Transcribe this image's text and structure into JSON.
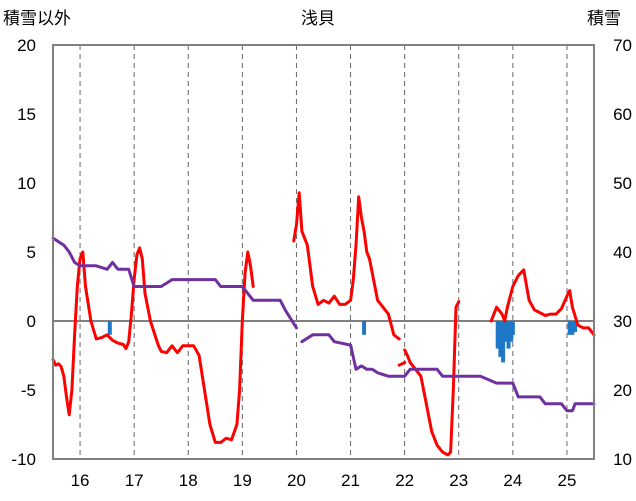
{
  "chart_data": {
    "type": "line",
    "title": "浅貝",
    "left_axis_label": "積雪以外",
    "right_axis_label": "積雪",
    "x_ticks": [
      "16",
      "17",
      "18",
      "19",
      "20",
      "21",
      "22",
      "23",
      "24",
      "25"
    ],
    "x_range": [
      15.5,
      25.5
    ],
    "ylim_left": [
      -10,
      20
    ],
    "ylim_right": [
      10,
      70
    ],
    "yticks_left": [
      "20",
      "15",
      "10",
      "5",
      "0",
      "-5",
      "-10"
    ],
    "yticks_right": [
      "70",
      "60",
      "50",
      "40",
      "30",
      "20",
      "10"
    ],
    "grid": "vertical dashed",
    "colors": {
      "temperature": "#ff0000",
      "snow_depth": "#7030a0",
      "precipitation": "#1f77c8"
    },
    "series": [
      {
        "key": "temperature",
        "axis": "left",
        "segments": [
          [
            [
              15.5,
              -2.8
            ],
            [
              15.55,
              -3.2
            ],
            [
              15.6,
              -3.1
            ],
            [
              15.65,
              -3.3
            ],
            [
              15.7,
              -4.0
            ],
            [
              15.75,
              -5.5
            ],
            [
              15.8,
              -6.8
            ],
            [
              15.85,
              -5.0
            ],
            [
              15.9,
              -1.0
            ],
            [
              15.95,
              2.5
            ],
            [
              16.0,
              4.5
            ],
            [
              16.05,
              5.0
            ],
            [
              16.1,
              2.5
            ],
            [
              16.2,
              0.0
            ],
            [
              16.3,
              -1.3
            ],
            [
              16.4,
              -1.2
            ],
            [
              16.5,
              -1.0
            ],
            [
              16.6,
              -1.4
            ],
            [
              16.7,
              -1.6
            ],
            [
              16.8,
              -1.7
            ],
            [
              16.85,
              -2.0
            ],
            [
              16.9,
              -1.5
            ],
            [
              16.95,
              0.5
            ],
            [
              17.0,
              3.0
            ],
            [
              17.05,
              4.8
            ],
            [
              17.1,
              5.3
            ],
            [
              17.15,
              4.5
            ],
            [
              17.2,
              2.0
            ],
            [
              17.3,
              0.0
            ],
            [
              17.4,
              -1.2
            ],
            [
              17.45,
              -1.8
            ],
            [
              17.5,
              -2.2
            ],
            [
              17.6,
              -2.3
            ],
            [
              17.7,
              -1.8
            ],
            [
              17.8,
              -2.3
            ],
            [
              17.9,
              -1.8
            ],
            [
              18.0,
              -1.8
            ],
            [
              18.1,
              -1.8
            ],
            [
              18.2,
              -2.5
            ],
            [
              18.3,
              -5.0
            ],
            [
              18.4,
              -7.5
            ],
            [
              18.5,
              -8.8
            ],
            [
              18.6,
              -8.8
            ],
            [
              18.7,
              -8.5
            ],
            [
              18.8,
              -8.6
            ],
            [
              18.9,
              -7.5
            ],
            [
              18.95,
              -5.0
            ],
            [
              19.0,
              0.0
            ],
            [
              19.05,
              3.5
            ],
            [
              19.1,
              5.0
            ],
            [
              19.15,
              4.0
            ],
            [
              19.2,
              2.5
            ]
          ],
          [
            [
              19.95,
              5.8
            ],
            [
              20.0,
              7.0
            ],
            [
              20.05,
              9.3
            ],
            [
              20.1,
              6.5
            ],
            [
              20.2,
              5.5
            ],
            [
              20.3,
              2.5
            ],
            [
              20.4,
              1.2
            ],
            [
              20.5,
              1.5
            ],
            [
              20.6,
              1.3
            ],
            [
              20.7,
              1.8
            ],
            [
              20.8,
              1.2
            ],
            [
              20.9,
              1.2
            ],
            [
              21.0,
              1.5
            ],
            [
              21.05,
              3.0
            ],
            [
              21.1,
              5.5
            ],
            [
              21.15,
              9.0
            ],
            [
              21.2,
              7.5
            ],
            [
              21.25,
              6.5
            ],
            [
              21.3,
              5.0
            ],
            [
              21.35,
              4.5
            ],
            [
              21.4,
              3.5
            ],
            [
              21.5,
              1.5
            ],
            [
              21.6,
              1.0
            ],
            [
              21.7,
              0.5
            ],
            [
              21.8,
              -1.0
            ],
            [
              21.9,
              -1.3
            ]
          ],
          [
            [
              21.9,
              -3.2
            ],
            [
              22.0,
              -3.0
            ]
          ],
          [
            [
              22.0,
              -2.1
            ],
            [
              22.05,
              -2.5
            ],
            [
              22.1,
              -3.0
            ],
            [
              22.2,
              -3.5
            ],
            [
              22.3,
              -4.0
            ],
            [
              22.4,
              -6.0
            ],
            [
              22.5,
              -8.0
            ],
            [
              22.6,
              -9.0
            ],
            [
              22.7,
              -9.5
            ],
            [
              22.8,
              -9.7
            ],
            [
              22.85,
              -9.5
            ],
            [
              22.9,
              -5.0
            ],
            [
              22.95,
              1.0
            ],
            [
              23.0,
              1.4
            ]
          ],
          [
            [
              23.6,
              0.0
            ],
            [
              23.7,
              1.0
            ],
            [
              23.8,
              0.5
            ],
            [
              23.85,
              0.0
            ],
            [
              23.9,
              1.0
            ],
            [
              24.0,
              2.5
            ],
            [
              24.1,
              3.3
            ],
            [
              24.15,
              3.5
            ],
            [
              24.2,
              3.7
            ],
            [
              24.3,
              1.5
            ],
            [
              24.4,
              0.8
            ],
            [
              24.5,
              0.6
            ],
            [
              24.6,
              0.4
            ],
            [
              24.7,
              0.5
            ],
            [
              24.8,
              0.5
            ],
            [
              24.9,
              0.9
            ],
            [
              25.0,
              1.8
            ],
            [
              25.05,
              2.2
            ],
            [
              25.1,
              1.0
            ],
            [
              25.2,
              -0.3
            ],
            [
              25.3,
              -0.5
            ],
            [
              25.4,
              -0.5
            ],
            [
              25.5,
              -1.0
            ]
          ]
        ]
      },
      {
        "key": "snow_depth",
        "axis": "right",
        "segments": [
          [
            [
              15.5,
              42
            ],
            [
              15.7,
              41
            ],
            [
              15.8,
              40
            ],
            [
              15.9,
              38.5
            ],
            [
              16.0,
              38
            ],
            [
              16.3,
              38
            ],
            [
              16.5,
              37.5
            ],
            [
              16.6,
              38.5
            ],
            [
              16.7,
              37.5
            ],
            [
              16.9,
              37.5
            ],
            [
              17.0,
              35
            ],
            [
              17.5,
              35
            ],
            [
              17.6,
              35.5
            ],
            [
              17.7,
              36
            ],
            [
              18.5,
              36
            ],
            [
              18.6,
              35
            ],
            [
              19.0,
              35
            ],
            [
              19.1,
              34
            ],
            [
              19.2,
              33
            ],
            [
              19.4,
              33
            ],
            [
              19.6,
              33
            ],
            [
              19.7,
              33
            ],
            [
              19.8,
              31.5
            ],
            [
              20.0,
              29
            ]
          ],
          [
            [
              20.1,
              27
            ],
            [
              20.3,
              28
            ],
            [
              20.4,
              28
            ],
            [
              20.6,
              28
            ],
            [
              20.7,
              27
            ],
            [
              21.0,
              26.5
            ],
            [
              21.1,
              23
            ],
            [
              21.2,
              23.5
            ],
            [
              21.3,
              23
            ],
            [
              21.4,
              23
            ],
            [
              21.5,
              22.5
            ],
            [
              21.7,
              22
            ],
            [
              22.0,
              22
            ],
            [
              22.1,
              23
            ],
            [
              22.6,
              23
            ],
            [
              22.7,
              22
            ],
            [
              23.1,
              22
            ],
            [
              23.4,
              22
            ],
            [
              23.7,
              21
            ],
            [
              24.0,
              21
            ],
            [
              24.1,
              19
            ],
            [
              24.5,
              19
            ],
            [
              24.6,
              18
            ],
            [
              24.9,
              18
            ],
            [
              25.0,
              17
            ],
            [
              25.1,
              17
            ],
            [
              25.15,
              18
            ],
            [
              25.3,
              18
            ],
            [
              25.5,
              18
            ]
          ]
        ]
      },
      {
        "key": "precipitation",
        "axis": "left",
        "bars": [
          {
            "x": 16.55,
            "to": -1.0
          },
          {
            "x": 21.25,
            "to": -1.0
          },
          {
            "x": 23.72,
            "to": -2.0
          },
          {
            "x": 23.77,
            "to": -2.6
          },
          {
            "x": 23.82,
            "to": -3.0
          },
          {
            "x": 23.87,
            "to": -1.5
          },
          {
            "x": 23.92,
            "to": -2.0
          },
          {
            "x": 23.97,
            "to": -1.5
          },
          {
            "x": 24.0,
            "to": -1.0
          },
          {
            "x": 25.05,
            "to": -1.0
          },
          {
            "x": 25.1,
            "to": -1.0
          },
          {
            "x": 25.15,
            "to": -0.8
          }
        ]
      }
    ]
  }
}
